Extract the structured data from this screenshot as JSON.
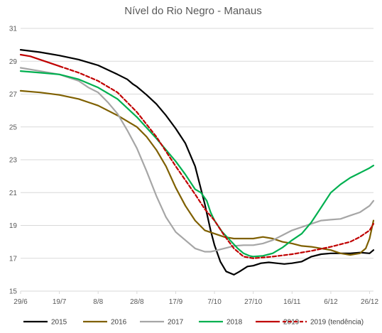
{
  "chart_data": {
    "type": "line",
    "title": "Nível do Rio Negro - Manaus",
    "xlabel": "",
    "ylabel": "",
    "ylim": [
      15,
      31
    ],
    "yticks": [
      15,
      17,
      19,
      21,
      23,
      25,
      27,
      29,
      31
    ],
    "xlim": [
      0,
      182
    ],
    "xticks": [
      {
        "x": 0,
        "label": "29/6"
      },
      {
        "x": 20,
        "label": "19/7"
      },
      {
        "x": 40,
        "label": "8/8"
      },
      {
        "x": 60,
        "label": "28/8"
      },
      {
        "x": 80,
        "label": "17/9"
      },
      {
        "x": 100,
        "label": "7/10"
      },
      {
        "x": 120,
        "label": "27/10"
      },
      {
        "x": 140,
        "label": "16/11"
      },
      {
        "x": 160,
        "label": "6/12"
      },
      {
        "x": 180,
        "label": "26/12"
      }
    ],
    "grid": "horizontal",
    "legend_position": "bottom",
    "series": [
      {
        "name": "2015",
        "color": "#000000",
        "dash": "solid",
        "x": [
          0,
          10,
          20,
          30,
          40,
          50,
          55,
          58,
          60,
          65,
          70,
          75,
          80,
          85,
          90,
          95,
          98,
          100,
          103,
          106,
          110,
          113,
          117,
          120,
          124,
          128,
          132,
          136,
          140,
          145,
          150,
          155,
          160,
          165,
          170,
          175,
          180,
          182
        ],
        "y": [
          29.7,
          29.55,
          29.35,
          29.1,
          28.75,
          28.2,
          27.9,
          27.6,
          27.45,
          26.95,
          26.4,
          25.7,
          24.9,
          24.0,
          22.6,
          20.3,
          18.7,
          17.8,
          16.8,
          16.2,
          16.0,
          16.2,
          16.5,
          16.55,
          16.7,
          16.75,
          16.7,
          16.65,
          16.7,
          16.8,
          17.1,
          17.25,
          17.3,
          17.3,
          17.3,
          17.35,
          17.3,
          17.5
        ]
      },
      {
        "name": "2016",
        "color": "#7f6000",
        "dash": "solid",
        "x": [
          0,
          10,
          20,
          30,
          40,
          50,
          60,
          65,
          70,
          75,
          80,
          85,
          90,
          95,
          100,
          105,
          110,
          115,
          120,
          125,
          130,
          135,
          140,
          145,
          150,
          155,
          160,
          165,
          170,
          175,
          178,
          180,
          182
        ],
        "y": [
          27.2,
          27.1,
          26.95,
          26.7,
          26.3,
          25.7,
          25.0,
          24.4,
          23.6,
          22.6,
          21.3,
          20.2,
          19.3,
          18.7,
          18.5,
          18.3,
          18.2,
          18.2,
          18.2,
          18.3,
          18.2,
          18.0,
          17.9,
          17.75,
          17.7,
          17.6,
          17.5,
          17.3,
          17.2,
          17.3,
          17.6,
          18.2,
          19.3
        ]
      },
      {
        "name": "2017",
        "color": "#a6a6a6",
        "dash": "solid",
        "x": [
          0,
          10,
          20,
          30,
          35,
          40,
          45,
          50,
          55,
          60,
          65,
          70,
          75,
          80,
          85,
          90,
          95,
          98,
          100,
          105,
          110,
          115,
          120,
          125,
          130,
          135,
          140,
          145,
          150,
          155,
          160,
          165,
          170,
          175,
          180,
          182
        ],
        "y": [
          28.6,
          28.4,
          28.2,
          27.8,
          27.4,
          27.1,
          26.5,
          25.8,
          24.8,
          23.7,
          22.3,
          20.8,
          19.5,
          18.6,
          18.1,
          17.6,
          17.4,
          17.4,
          17.45,
          17.6,
          17.75,
          17.8,
          17.8,
          17.9,
          18.1,
          18.4,
          18.7,
          18.9,
          19.1,
          19.3,
          19.35,
          19.4,
          19.6,
          19.8,
          20.2,
          20.5
        ]
      },
      {
        "name": "2018",
        "color": "#00b050",
        "dash": "solid",
        "x": [
          0,
          10,
          20,
          30,
          40,
          50,
          60,
          70,
          80,
          85,
          90,
          93,
          96,
          98,
          100,
          104,
          108,
          112,
          115,
          118,
          120,
          125,
          130,
          135,
          140,
          145,
          150,
          155,
          160,
          165,
          170,
          175,
          180,
          182
        ],
        "y": [
          28.4,
          28.3,
          28.2,
          27.9,
          27.4,
          26.7,
          25.6,
          24.3,
          22.9,
          22.1,
          21.2,
          21.0,
          20.5,
          19.8,
          19.3,
          18.6,
          18.1,
          17.6,
          17.3,
          17.15,
          17.1,
          17.15,
          17.3,
          17.65,
          18.1,
          18.5,
          19.2,
          20.1,
          21.0,
          21.5,
          21.9,
          22.2,
          22.5,
          22.65
        ]
      },
      {
        "name": "2019",
        "color": "#c00000",
        "dash": "solid",
        "x": [
          0,
          5,
          10,
          15,
          20
        ],
        "y": [
          29.4,
          29.3,
          29.1,
          28.9,
          28.7
        ]
      },
      {
        "name": "2019 (tendência)",
        "color": "#c00000",
        "dash": "dashed",
        "x": [
          20,
          30,
          40,
          50,
          60,
          70,
          80,
          90,
          95,
          100,
          105,
          110,
          115,
          120,
          125,
          130,
          140,
          150,
          160,
          165,
          170,
          175,
          180,
          182
        ],
        "y": [
          28.7,
          28.3,
          27.8,
          27.1,
          25.9,
          24.4,
          22.6,
          20.9,
          20.0,
          19.3,
          18.4,
          17.6,
          17.1,
          17.0,
          17.05,
          17.1,
          17.25,
          17.45,
          17.7,
          17.85,
          18.0,
          18.3,
          18.7,
          19.1
        ]
      }
    ]
  }
}
